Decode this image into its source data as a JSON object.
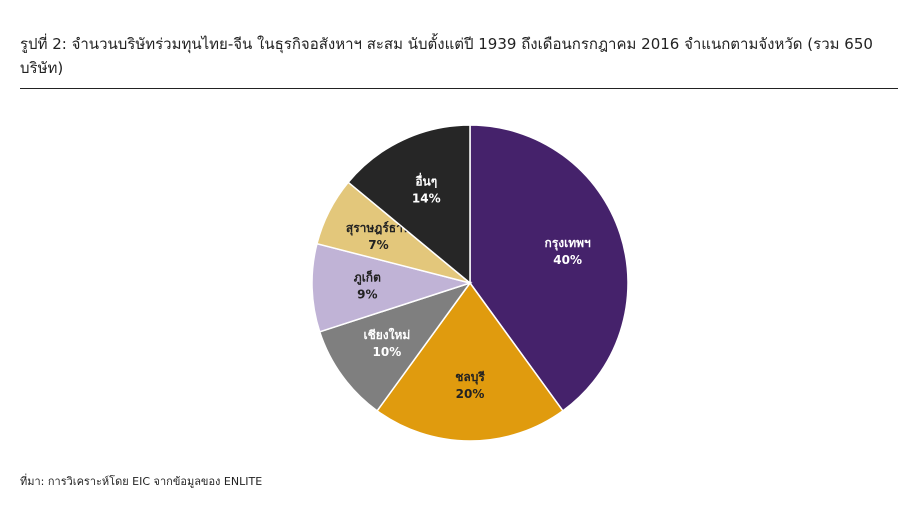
{
  "chart_data": {
    "type": "pie",
    "title": "รูปที่ 2: จำนวนบริษัทร่วมทุนไทย-จีน ในธุรกิจอสังหาฯ สะสม นับตั้งแต่ปี 1939 ถึงเดือนกรกฎาคม 2016 จำแนกตามจังหวัด (รวม 650 บริษัท)",
    "categories": [
      "กรุงเทพฯ",
      "ชลบุรี",
      "เชียงใหม่",
      "ภูเก็ต",
      "สุราษฎร์ธานี",
      "อื่นๆ"
    ],
    "values": [
      40,
      20,
      10,
      9,
      7,
      14
    ],
    "value_labels": [
      "40%",
      "20%",
      "10%",
      "9%",
      "7%",
      "14%"
    ],
    "colors": [
      "#45226b",
      "#e09b0e",
      "#7f7f7f",
      "#c0b3d6",
      "#e3c77b",
      "#262626"
    ],
    "source": "ที่มา: การวิเคราะห์โดย EIC จากข้อมูลของ ENLITE"
  }
}
